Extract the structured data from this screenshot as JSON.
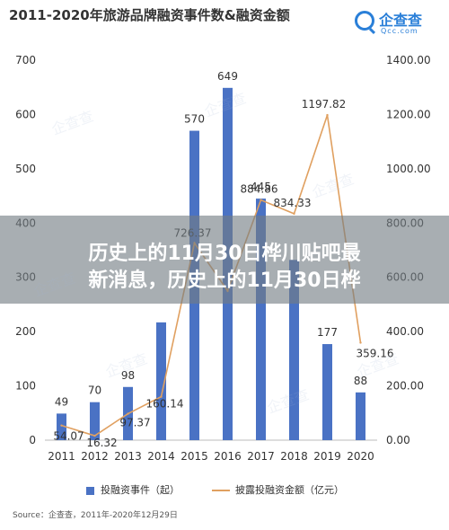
{
  "header": {
    "title": "2011-2020年旅游品牌融资事件数&融资金额",
    "logo_name": "企查查",
    "logo_domain": "Qcc.com"
  },
  "overlay": {
    "line1": "历史上的11月30日桦川贴吧最",
    "line2": "新消息，历史上的11月30日桦"
  },
  "legend": {
    "bar_label": "投融资事件（起）",
    "line_label": "披露投融资金额（亿元）"
  },
  "source": "Source：企查查，2011年-2020年12月29日",
  "watermark_text": "企查查",
  "colors": {
    "bar": "#4a72c4",
    "line": "#e0a060",
    "text": "#333333",
    "logo": "#2a7fd8"
  },
  "chart_data": {
    "type": "bar",
    "title": "2011-2020年旅游品牌融资事件数&融资金额",
    "categories": [
      "2011",
      "2012",
      "2013",
      "2014",
      "2015",
      "2016",
      "2017",
      "2018",
      "2019",
      "2020"
    ],
    "series": [
      {
        "name": "投融资事件（起）",
        "type": "bar",
        "axis": "left",
        "values": [
          49,
          70,
          98,
          217,
          570,
          649,
          445,
          332,
          177,
          88
        ],
        "labels": [
          "49",
          "70",
          "98",
          "",
          "570",
          "649",
          "445",
          "",
          "177",
          "88"
        ]
      },
      {
        "name": "披露投融资金额（亿元）",
        "type": "line",
        "axis": "right",
        "values": [
          54.07,
          16.32,
          97.37,
          160.14,
          726.37,
          550,
          884.86,
          834.33,
          1197.82,
          359.16
        ],
        "labels": [
          "54.07",
          "16.32",
          "97.37",
          "160.14",
          "726.37",
          "",
          "884.86",
          "834.33",
          "1197.82",
          "359.16"
        ]
      }
    ],
    "ylim_left": [
      0,
      700
    ],
    "ylim_right": [
      0,
      1400
    ],
    "yticks_left": [
      "0",
      "100",
      "200",
      "300",
      "400",
      "500",
      "600",
      "700"
    ],
    "yticks_right": [
      "0.00",
      "200.00",
      "400.00",
      "600.00",
      "800.00",
      "1000.00",
      "1200.00",
      "1400.00"
    ],
    "grid": false,
    "legend_position": "bottom"
  }
}
